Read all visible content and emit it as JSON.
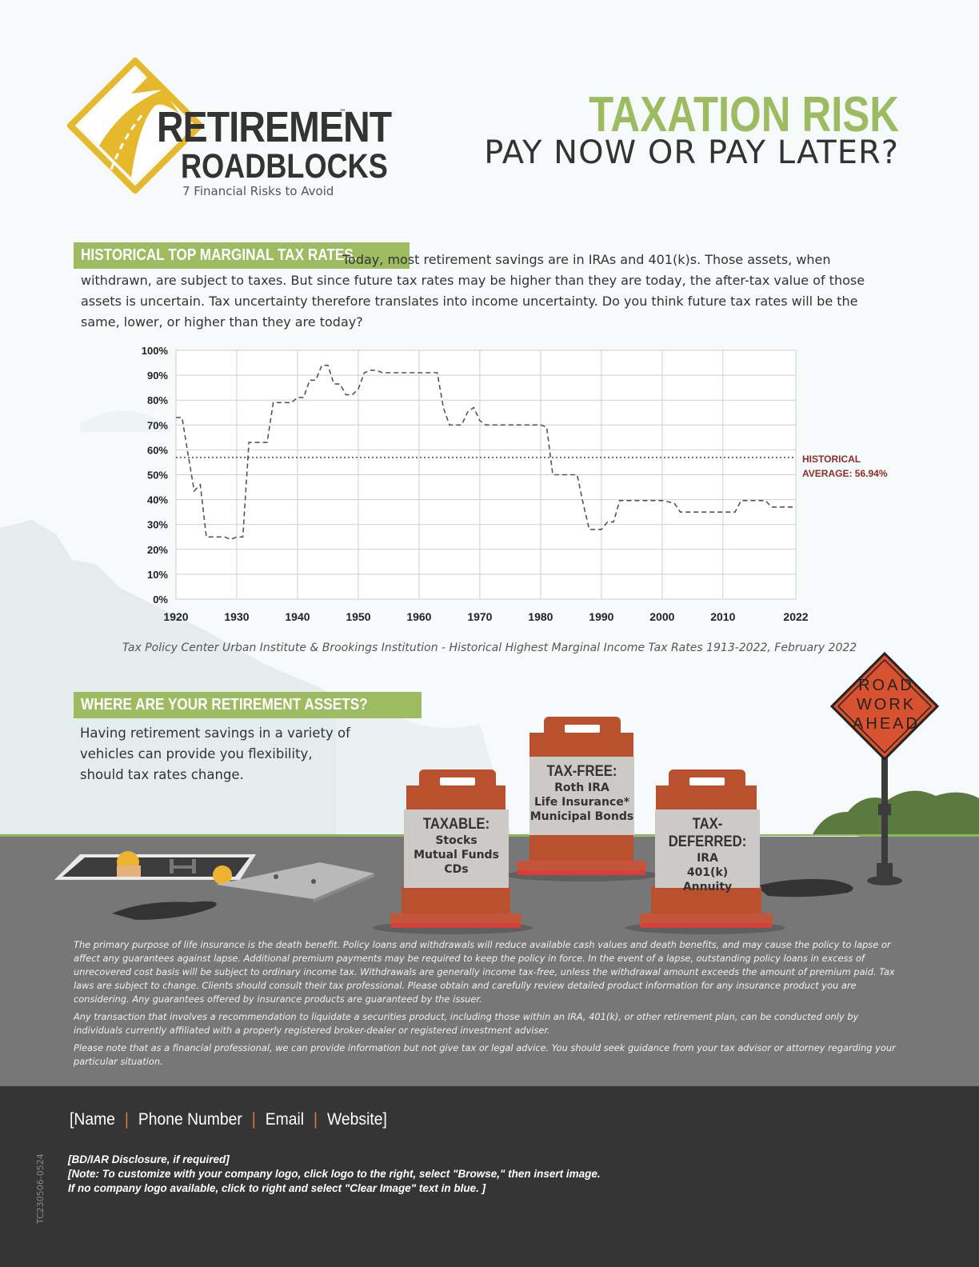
{
  "logo": {
    "word1": "RETIREMENT",
    "trademark": "™",
    "word2": "ROADBLOCKS",
    "tagline": "7 Financial Risks to Avoid"
  },
  "header": {
    "title": "TAXATION RISK",
    "subtitle": "PAY NOW OR PAY LATER?"
  },
  "section1": {
    "label": "HISTORICAL TOP MARGINAL TAX RATES.",
    "body": "Today, most retirement savings are in IRAs and 401(k)s. Those assets, when withdrawn, are subject to taxes. But since future tax rates may be higher than they are today, the after-tax value of those assets is uncertain. Tax uncertainty therefore translates into income uncertainty. Do you think future tax rates will be the same, lower, or higher than they are today?"
  },
  "chart_data": {
    "type": "line",
    "title": "",
    "xlabel": "",
    "ylabel": "",
    "xlim": [
      1920,
      2022
    ],
    "ylim": [
      0,
      100
    ],
    "x_ticks": [
      "1920",
      "1930",
      "1940",
      "1950",
      "1960",
      "1970",
      "1980",
      "1990",
      "2000",
      "2010",
      "2022"
    ],
    "y_ticks": [
      "0%",
      "10%",
      "20%",
      "30%",
      "40%",
      "50%",
      "60%",
      "70%",
      "80%",
      "90%",
      "100%"
    ],
    "grid": true,
    "series": [
      {
        "points": [
          [
            1920,
            73
          ],
          [
            1921,
            73
          ],
          [
            1922,
            58
          ],
          [
            1923,
            43.5
          ],
          [
            1924,
            46
          ],
          [
            1925,
            25
          ],
          [
            1926,
            25
          ],
          [
            1927,
            25
          ],
          [
            1928,
            25
          ],
          [
            1929,
            24
          ],
          [
            1930,
            25
          ],
          [
            1931,
            25
          ],
          [
            1932,
            63
          ],
          [
            1933,
            63
          ],
          [
            1934,
            63
          ],
          [
            1935,
            63
          ],
          [
            1936,
            79
          ],
          [
            1937,
            79
          ],
          [
            1938,
            79
          ],
          [
            1939,
            79
          ],
          [
            1940,
            81.1
          ],
          [
            1941,
            81
          ],
          [
            1942,
            88
          ],
          [
            1943,
            88
          ],
          [
            1944,
            94
          ],
          [
            1945,
            94
          ],
          [
            1946,
            86.45
          ],
          [
            1947,
            86.45
          ],
          [
            1948,
            82.13
          ],
          [
            1949,
            82.13
          ],
          [
            1950,
            84.36
          ],
          [
            1951,
            91
          ],
          [
            1952,
            92
          ],
          [
            1953,
            92
          ],
          [
            1954,
            91
          ],
          [
            1955,
            91
          ],
          [
            1956,
            91
          ],
          [
            1957,
            91
          ],
          [
            1958,
            91
          ],
          [
            1959,
            91
          ],
          [
            1960,
            91
          ],
          [
            1961,
            91
          ],
          [
            1962,
            91
          ],
          [
            1963,
            91
          ],
          [
            1964,
            77
          ],
          [
            1965,
            70
          ],
          [
            1966,
            70
          ],
          [
            1967,
            70
          ],
          [
            1968,
            75.25
          ],
          [
            1969,
            77
          ],
          [
            1970,
            71.75
          ],
          [
            1971,
            70
          ],
          [
            1972,
            70
          ],
          [
            1973,
            70
          ],
          [
            1974,
            70
          ],
          [
            1975,
            70
          ],
          [
            1976,
            70
          ],
          [
            1977,
            70
          ],
          [
            1978,
            70
          ],
          [
            1979,
            70
          ],
          [
            1980,
            70
          ],
          [
            1981,
            69.13
          ],
          [
            1982,
            50
          ],
          [
            1983,
            50
          ],
          [
            1984,
            50
          ],
          [
            1985,
            50
          ],
          [
            1986,
            50
          ],
          [
            1987,
            38.5
          ],
          [
            1988,
            28
          ],
          [
            1989,
            28
          ],
          [
            1990,
            28
          ],
          [
            1991,
            31
          ],
          [
            1992,
            31
          ],
          [
            1993,
            39.6
          ],
          [
            1994,
            39.6
          ],
          [
            1995,
            39.6
          ],
          [
            1996,
            39.6
          ],
          [
            1997,
            39.6
          ],
          [
            1998,
            39.6
          ],
          [
            1999,
            39.6
          ],
          [
            2000,
            39.6
          ],
          [
            2001,
            39.1
          ],
          [
            2002,
            38.6
          ],
          [
            2003,
            35
          ],
          [
            2004,
            35
          ],
          [
            2005,
            35
          ],
          [
            2006,
            35
          ],
          [
            2007,
            35
          ],
          [
            2008,
            35
          ],
          [
            2009,
            35
          ],
          [
            2010,
            35
          ],
          [
            2011,
            35
          ],
          [
            2012,
            35
          ],
          [
            2013,
            39.6
          ],
          [
            2014,
            39.6
          ],
          [
            2015,
            39.6
          ],
          [
            2016,
            39.6
          ],
          [
            2017,
            39.6
          ],
          [
            2018,
            37
          ],
          [
            2019,
            37
          ],
          [
            2020,
            37
          ],
          [
            2021,
            37
          ],
          [
            2022,
            37
          ]
        ],
        "color": "#555555",
        "style": "dashed"
      }
    ],
    "reference_line": {
      "value": 56.94,
      "label_line1": "HISTORICAL",
      "label_line2": "AVERAGE: 56.94%",
      "color": "#8b2e2a"
    },
    "source": "Tax Policy Center Urban Institute & Brookings Institution - Historical Highest Marginal Income Tax Rates 1913-2022, February 2022"
  },
  "section2": {
    "label": "WHERE ARE YOUR RETIREMENT ASSETS?",
    "body": "Having retirement savings in a variety of vehicles can provide you flexibility, should tax rates change."
  },
  "sign": {
    "line1": "ROAD",
    "line2": "WORK",
    "line3": "AHEAD"
  },
  "barrels": {
    "taxable": {
      "title": "TAXABLE:",
      "items": [
        "Stocks",
        "Mutual Funds",
        "CDs"
      ]
    },
    "taxfree": {
      "title": "TAX-FREE:",
      "items": [
        "Roth IRA",
        "Life Insurance*",
        "Municipal Bonds"
      ]
    },
    "taxdeferred": {
      "title": "TAX-DEFERRED:",
      "items": [
        "IRA",
        "401(k)",
        "Annuity"
      ]
    }
  },
  "disclaimers": [
    "The primary purpose of life insurance is the death benefit. Policy loans and withdrawals will reduce available cash values and death benefits, and may cause the policy to lapse or affect any guarantees against lapse. Additional premium payments may be required to keep the policy in force. In the event of a lapse, outstanding policy loans in excess of unrecovered cost basis will be subject to ordinary income tax. Withdrawals are generally income tax-free, unless the withdrawal amount exceeds the amount of premium paid. Tax laws are subject to change. Clients should consult their tax professional. Please obtain and carefully review detailed product information for any insurance product you are considering. Any guarantees offered by insurance products are guaranteed by the issuer.",
    "Any transaction that involves a recommendation to liquidate a securities product, including those within an IRA, 401(k), or other retirement plan, can be conducted only by individuals currently affiliated with a properly registered broker-dealer or registered investment adviser.",
    "Please note that as a financial professional, we can provide information but not give tax or legal advice. You should seek guidance from your tax advisor or attorney regarding your particular situation."
  ],
  "footer": {
    "name": "[Name",
    "phone": "Phone Number",
    "email": "Email",
    "website": "Website]",
    "separator": "|",
    "bd_line1": "[BD/IAR Disclosure, if required]",
    "bd_line2": "[Note: To customize with your company logo, click logo to the right, select \"Browse,\" then insert image.",
    "bd_line3": "If no company logo available, click to right and select \"Clear Image\" text in blue. ]",
    "code": "TC230506-0524"
  },
  "colors": {
    "accent_green": "#9dbc62",
    "barrel_orange": "#b9512f",
    "road_gray": "#777777",
    "footer_dark": "#353535",
    "sign_orange": "#d9522f"
  }
}
